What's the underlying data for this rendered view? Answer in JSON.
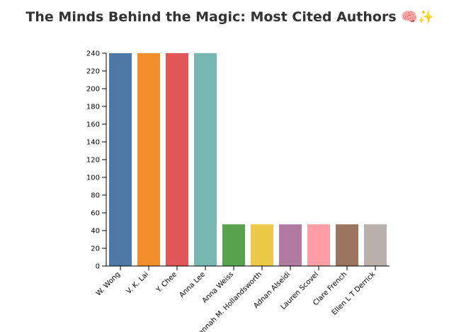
{
  "chart_data": {
    "type": "bar",
    "title": "The Minds Behind the Magic: Most Cited Authors 🧠✨",
    "xlabel": "",
    "ylabel": "",
    "ylim": [
      0,
      240
    ],
    "yticks": [
      0,
      20,
      40,
      60,
      80,
      100,
      120,
      140,
      160,
      180,
      200,
      220,
      240
    ],
    "grid": false,
    "categories": [
      "W. Wong",
      "V. K. Lai",
      "Y. Chee",
      "Anna Lee",
      "Anna Weiss",
      "Hannah M. Hollandsworth",
      "Adnan Alseidi",
      "Lauren Scovel",
      "Clare French",
      "Ellen L T Derrick"
    ],
    "values": [
      240,
      240,
      240,
      240,
      47,
      47,
      47,
      47,
      47,
      47
    ],
    "colors": [
      "#4e79a7",
      "#f28e2b",
      "#e15759",
      "#76b7b2",
      "#59a14f",
      "#edc948",
      "#b07aa1",
      "#ff9da7",
      "#9c755f",
      "#bab0ac"
    ]
  }
}
